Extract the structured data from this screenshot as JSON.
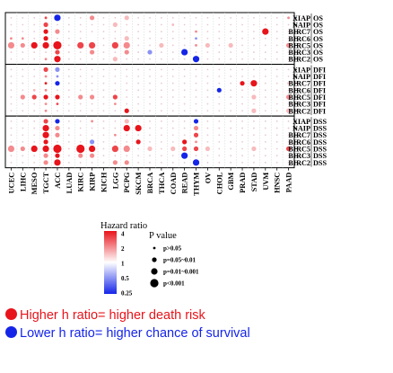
{
  "chart_data": {
    "type": "bubble-heatmap",
    "x_categories": [
      "UCEC",
      "LIHC",
      "MESO",
      "TGCT",
      "ACC",
      "LUAD",
      "KIRC",
      "KIRP",
      "KICH",
      "LGG",
      "PCPG",
      "SKCM",
      "BRCA",
      "THCA",
      "COAD",
      "READ",
      "THYM",
      "OV",
      "CHOL",
      "GBM",
      "PRAD",
      "STAD",
      "UVM",
      "HNSC",
      "PAAD"
    ],
    "panels": [
      {
        "endpoint": "OS",
        "genes": [
          "XIAP",
          "NAIP",
          "BIRC7",
          "BIRC6",
          "BIRC5",
          "BIRC3",
          "BIRC2"
        ]
      },
      {
        "endpoint": "DFI",
        "genes": [
          "XIAP",
          "NAIP",
          "BIRC7",
          "BIRC6",
          "BIRC5",
          "BIRC3",
          "BIRC2"
        ]
      },
      {
        "endpoint": "DSS",
        "genes": [
          "XIAP",
          "NAIP",
          "BIRC7",
          "BIRC6",
          "BIRC5",
          "BIRC3",
          "BIRC2"
        ]
      }
    ],
    "cells_note": "cells: [panel, gene_row, cancer_col, hazard_ratio, size_class 1..4]; omitted cells are small faint points",
    "cells": [
      [
        0,
        0,
        3,
        3,
        1
      ],
      [
        0,
        0,
        4,
        0.25,
        3
      ],
      [
        0,
        0,
        7,
        2,
        2
      ],
      [
        0,
        0,
        10,
        1.5,
        2
      ],
      [
        0,
        0,
        24,
        2,
        1
      ],
      [
        0,
        1,
        3,
        3,
        2
      ],
      [
        0,
        1,
        9,
        1.5,
        2
      ],
      [
        0,
        1,
        14,
        1.5,
        1
      ],
      [
        0,
        2,
        3,
        4,
        2
      ],
      [
        0,
        2,
        4,
        2,
        2
      ],
      [
        0,
        2,
        22,
        4,
        3
      ],
      [
        0,
        2,
        16,
        2,
        1
      ],
      [
        0,
        3,
        0,
        2,
        1
      ],
      [
        0,
        3,
        1,
        2,
        1
      ],
      [
        0,
        3,
        3,
        4,
        2
      ],
      [
        0,
        3,
        7,
        1,
        3
      ],
      [
        0,
        3,
        10,
        1.5,
        2
      ],
      [
        0,
        3,
        16,
        0.5,
        1
      ],
      [
        0,
        4,
        0,
        2,
        3
      ],
      [
        0,
        4,
        1,
        2,
        2
      ],
      [
        0,
        4,
        2,
        4,
        3
      ],
      [
        0,
        4,
        3,
        4,
        3
      ],
      [
        0,
        4,
        4,
        4,
        4
      ],
      [
        0,
        4,
        6,
        3,
        3
      ],
      [
        0,
        4,
        7,
        3,
        3
      ],
      [
        0,
        4,
        9,
        3,
        3
      ],
      [
        0,
        4,
        10,
        2,
        3
      ],
      [
        0,
        4,
        13,
        1.5,
        2
      ],
      [
        0,
        4,
        16,
        2,
        1
      ],
      [
        0,
        4,
        17,
        1.5,
        2
      ],
      [
        0,
        4,
        19,
        1.5,
        2
      ],
      [
        0,
        4,
        24,
        2,
        2
      ],
      [
        0,
        5,
        4,
        3,
        2
      ],
      [
        0,
        5,
        7,
        2,
        2
      ],
      [
        0,
        5,
        10,
        2,
        2
      ],
      [
        0,
        5,
        15,
        0.25,
        3
      ],
      [
        0,
        5,
        12,
        0.5,
        2
      ],
      [
        0,
        6,
        3,
        2,
        1
      ],
      [
        0,
        6,
        4,
        4,
        3
      ],
      [
        0,
        6,
        9,
        1.5,
        2
      ],
      [
        0,
        6,
        16,
        0.25,
        3
      ],
      [
        1,
        0,
        3,
        3,
        2
      ],
      [
        1,
        0,
        4,
        0.5,
        2
      ],
      [
        1,
        1,
        3,
        2,
        1
      ],
      [
        1,
        1,
        4,
        0.5,
        1
      ],
      [
        1,
        2,
        3,
        4,
        1
      ],
      [
        1,
        2,
        4,
        0.25,
        2
      ],
      [
        1,
        2,
        20,
        4,
        2
      ],
      [
        1,
        2,
        21,
        4,
        3
      ],
      [
        1,
        2,
        24,
        1.5,
        1
      ],
      [
        1,
        3,
        2,
        1.5,
        1
      ],
      [
        1,
        3,
        3,
        2,
        1
      ],
      [
        1,
        3,
        18,
        0.25,
        2
      ],
      [
        1,
        4,
        1,
        2,
        2
      ],
      [
        1,
        4,
        2,
        3,
        2
      ],
      [
        1,
        4,
        3,
        4,
        2
      ],
      [
        1,
        4,
        4,
        4,
        2
      ],
      [
        1,
        4,
        6,
        2,
        2
      ],
      [
        1,
        4,
        7,
        2,
        2
      ],
      [
        1,
        4,
        9,
        3,
        2
      ],
      [
        1,
        4,
        21,
        1.5,
        2
      ],
      [
        1,
        4,
        24,
        2,
        2
      ],
      [
        1,
        5,
        3,
        2,
        1
      ],
      [
        1,
        5,
        4,
        3,
        1
      ],
      [
        1,
        5,
        9,
        2,
        1
      ],
      [
        1,
        6,
        3,
        2,
        1
      ],
      [
        1,
        6,
        10,
        4,
        2
      ],
      [
        1,
        6,
        21,
        1.5,
        2
      ],
      [
        1,
        6,
        24,
        1.5,
        2
      ],
      [
        2,
        0,
        3,
        3,
        2
      ],
      [
        2,
        0,
        4,
        0.25,
        2
      ],
      [
        2,
        0,
        7,
        2,
        1
      ],
      [
        2,
        0,
        10,
        1.5,
        2
      ],
      [
        2,
        0,
        16,
        0.25,
        2
      ],
      [
        2,
        1,
        3,
        4,
        3
      ],
      [
        2,
        1,
        4,
        2,
        2
      ],
      [
        2,
        1,
        10,
        4,
        3
      ],
      [
        2,
        1,
        11,
        4,
        3
      ],
      [
        2,
        1,
        16,
        2,
        2
      ],
      [
        2,
        2,
        3,
        4,
        3
      ],
      [
        2,
        2,
        4,
        2,
        2
      ],
      [
        2,
        2,
        9,
        2,
        1
      ],
      [
        2,
        2,
        16,
        3,
        2
      ],
      [
        2,
        3,
        3,
        4,
        2
      ],
      [
        2,
        3,
        7,
        0.5,
        2
      ],
      [
        2,
        3,
        11,
        4,
        2
      ],
      [
        2,
        3,
        15,
        4,
        2
      ],
      [
        2,
        3,
        16,
        2,
        1
      ],
      [
        2,
        4,
        0,
        2,
        3
      ],
      [
        2,
        4,
        1,
        2,
        2
      ],
      [
        2,
        4,
        2,
        4,
        3
      ],
      [
        2,
        4,
        3,
        4,
        3
      ],
      [
        2,
        4,
        4,
        4,
        4
      ],
      [
        2,
        4,
        6,
        4,
        4
      ],
      [
        2,
        4,
        7,
        4,
        3
      ],
      [
        2,
        4,
        9,
        3,
        3
      ],
      [
        2,
        4,
        10,
        2,
        3
      ],
      [
        2,
        4,
        12,
        1.5,
        2
      ],
      [
        2,
        4,
        14,
        1.5,
        2
      ],
      [
        2,
        4,
        15,
        3,
        2
      ],
      [
        2,
        4,
        16,
        3,
        2
      ],
      [
        2,
        4,
        17,
        1.5,
        2
      ],
      [
        2,
        4,
        21,
        1.5,
        2
      ],
      [
        2,
        4,
        24,
        3,
        2
      ],
      [
        2,
        5,
        3,
        2,
        2
      ],
      [
        2,
        5,
        4,
        4,
        2
      ],
      [
        2,
        5,
        6,
        2,
        2
      ],
      [
        2,
        5,
        7,
        2,
        2
      ],
      [
        2,
        5,
        15,
        0.25,
        3
      ],
      [
        2,
        6,
        3,
        2,
        2
      ],
      [
        2,
        6,
        4,
        4,
        3
      ],
      [
        2,
        6,
        9,
        2,
        2
      ],
      [
        2,
        6,
        10,
        2,
        2
      ],
      [
        2,
        6,
        16,
        0.25,
        3
      ]
    ],
    "colorbar": {
      "title": "Hazard ratio",
      "ticks": [
        "4",
        "2",
        "1",
        "0.5",
        "0.25"
      ],
      "high_color": "#e8141b",
      "mid_color": "#ffffff",
      "low_color": "#1525e8"
    },
    "size_legend": {
      "title": "P value",
      "items": [
        "p>0.05",
        "p=0.05~0.01",
        "p=0.01~0.001",
        "p<0.001"
      ]
    }
  },
  "notes": [
    {
      "text": "Higher h ratio= higher death risk",
      "color": "#e8141b"
    },
    {
      "text": "Lower h ratio= higher chance of survival",
      "color": "#1525e8"
    }
  ]
}
